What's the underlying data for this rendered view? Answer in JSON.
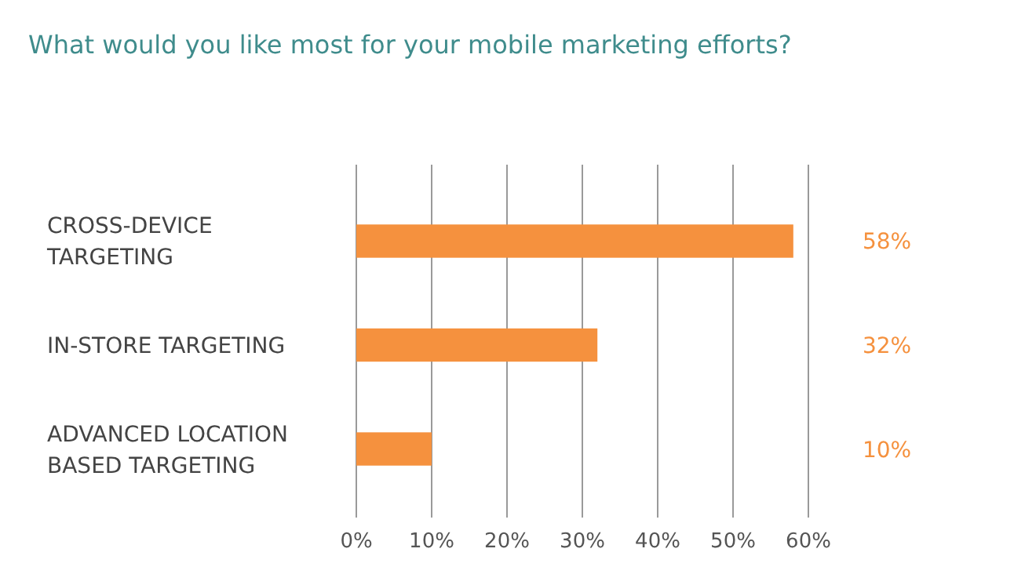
{
  "chart_data": {
    "type": "bar",
    "orientation": "horizontal",
    "title": "What would you like most for your mobile marketing efforts?",
    "categories": [
      "CROSS-DEVICE TARGETING",
      "IN-STORE TARGETING",
      "ADVANCED LOCATION BASED TARGETING"
    ],
    "values": [
      58,
      32,
      10
    ],
    "color": "#f5913e",
    "value_labels": [
      "58%",
      "32%",
      "10%"
    ],
    "xlim": [
      0,
      60
    ],
    "xticks": [
      {
        "value": 0,
        "label": "0%"
      },
      {
        "value": 10,
        "label": "10%"
      },
      {
        "value": 20,
        "label": "20%"
      },
      {
        "value": 30,
        "label": "30%"
      },
      {
        "value": 40,
        "label": "40%"
      },
      {
        "value": 50,
        "label": "50%"
      },
      {
        "value": 60,
        "label": "60%"
      }
    ],
    "grid": "x"
  }
}
